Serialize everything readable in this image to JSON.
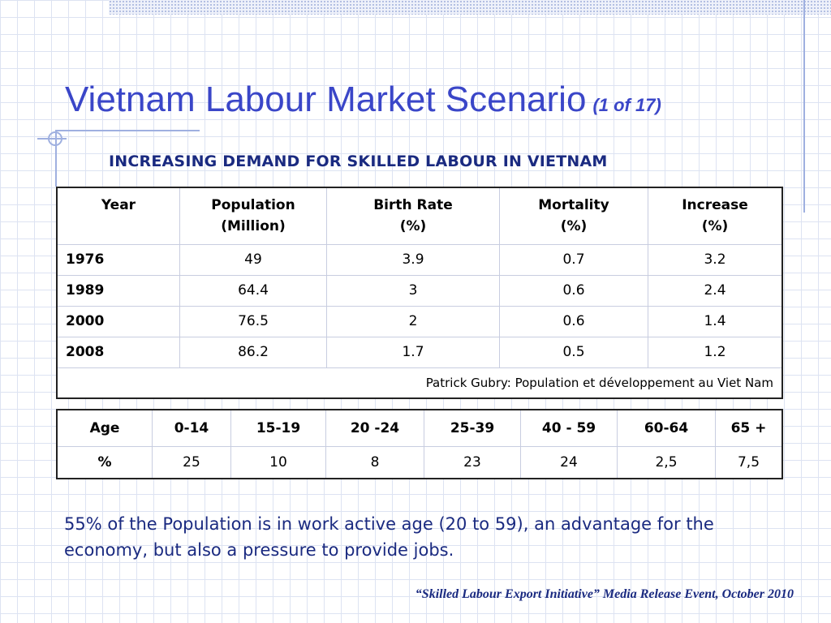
{
  "slide": {
    "title": "Vietnam Labour Market Scenario",
    "counter": "(1 of 17)",
    "subtitle": "INCREASING DEMAND FOR SKILLED LABOUR IN VIETNAM",
    "note": "55% of the Population is in work active age (20 to 59), an advantage for the economy, but also a pressure to provide jobs.",
    "footer": "“Skilled  Labour  Export Initiative” Media Release Event, October 2010"
  },
  "population_table": {
    "headers": [
      [
        "Year",
        ""
      ],
      [
        "Population",
        "(Million)"
      ],
      [
        "Birth Rate",
        "(%)"
      ],
      [
        "Mortality",
        "(%)"
      ],
      [
        "Increase",
        "(%)"
      ]
    ],
    "rows": [
      {
        "year": "1976",
        "population": "49",
        "birth_rate": "3.9",
        "mortality": "0.7",
        "increase": "3.2"
      },
      {
        "year": "1989",
        "population": "64.4",
        "birth_rate": "3",
        "mortality": "0.6",
        "increase": "2.4"
      },
      {
        "year": "2000",
        "population": "76.5",
        "birth_rate": "2",
        "mortality": "0.6",
        "increase": "1.4"
      },
      {
        "year": "2008",
        "population": "86.2",
        "birth_rate": "1.7",
        "mortality": "0.5",
        "increase": "1.2"
      }
    ],
    "source": "Patrick Gubry: Population et développement au Viet Nam"
  },
  "age_table": {
    "headers": [
      "Age",
      "0-14",
      "15-19",
      "20 -24",
      "25-39",
      "40 - 59",
      "60-64",
      "65 +"
    ],
    "row_label": "%",
    "values": [
      "25",
      "10",
      "8",
      "23",
      "24",
      "2,5",
      "7,5"
    ]
  },
  "colors": {
    "title": "#3a46c8",
    "text": "#1a2a80",
    "grid": "#dde3f2",
    "accent_line": "#9fb0e0"
  }
}
